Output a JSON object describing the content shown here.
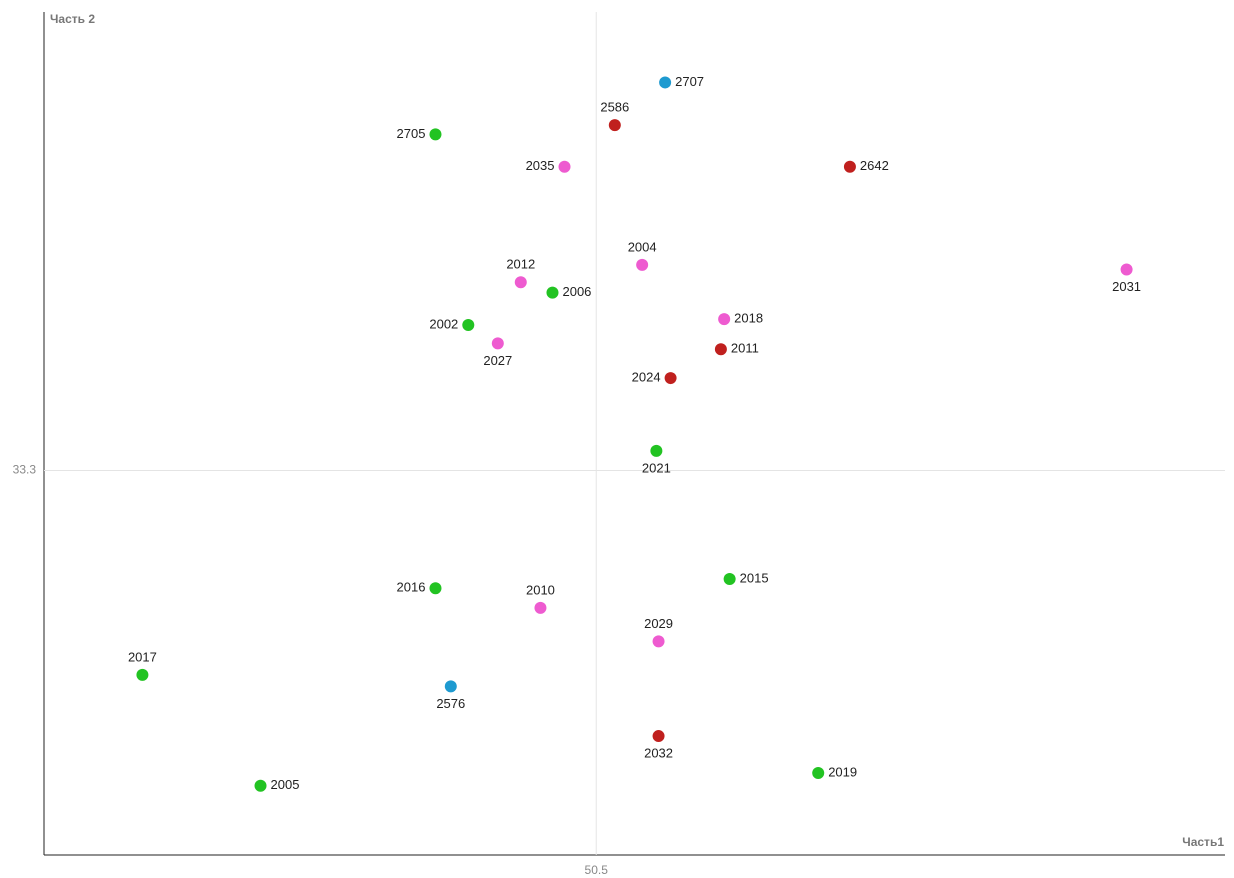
{
  "chart_data": {
    "type": "scatter",
    "x_label": "Часть1",
    "y_label": "Часть 2",
    "xlim": [
      0,
      108
    ],
    "ylim": [
      0,
      73
    ],
    "xticks": [
      50.5
    ],
    "yticks": [
      33.3
    ],
    "grid": true,
    "labels": [
      "2707",
      "2586",
      "2705",
      "2035",
      "2642",
      "2004",
      "2012",
      "2006",
      "2031",
      "2018",
      "2002",
      "2027",
      "2011",
      "2024",
      "2021",
      "2015",
      "2016",
      "2010",
      "2029",
      "2017",
      "2576",
      "2032",
      "2019",
      "2005"
    ],
    "x": [
      56.8,
      52.2,
      35.8,
      47.6,
      73.7,
      54.7,
      43.6,
      46.5,
      99.0,
      62.2,
      38.8,
      41.5,
      61.9,
      57.3,
      56.0,
      62.7,
      35.8,
      45.4,
      56.2,
      9.0,
      37.2,
      56.2,
      70.8,
      19.8
    ],
    "values": [
      66.9,
      63.2,
      62.4,
      59.6,
      59.6,
      51.1,
      49.6,
      48.7,
      50.7,
      46.4,
      45.9,
      44.3,
      43.8,
      41.3,
      35.0,
      23.9,
      23.1,
      21.4,
      18.5,
      15.6,
      14.6,
      10.3,
      7.1,
      6.0
    ],
    "colors": [
      "#1e9ad0",
      "#c0201e",
      "#22c322",
      "#ee5bd0",
      "#c0201e",
      "#ee5bd0",
      "#ee5bd0",
      "#22c322",
      "#ee5bd0",
      "#ee5bd0",
      "#22c322",
      "#ee5bd0",
      "#c0201e",
      "#c0201e",
      "#22c322",
      "#22c322",
      "#22c322",
      "#ee5bd0",
      "#ee5bd0",
      "#22c322",
      "#1e9ad0",
      "#c0201e",
      "#22c322",
      "#22c322"
    ],
    "label_positions": [
      "right",
      "above",
      "left",
      "left",
      "right",
      "above",
      "above",
      "right",
      "below",
      "right",
      "left",
      "below",
      "right",
      "left",
      "below",
      "right",
      "left",
      "above",
      "above",
      "above",
      "below",
      "below",
      "right",
      "right"
    ]
  }
}
